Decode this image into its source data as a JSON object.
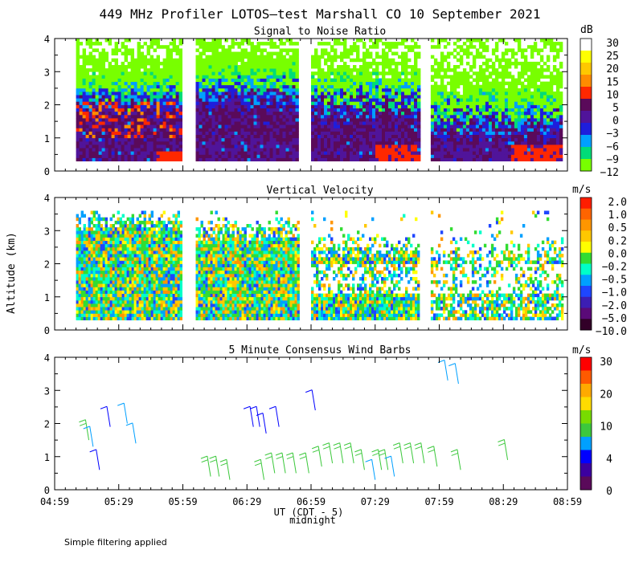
{
  "title": "449 MHz Profiler LOTOS—test Marshall CO 10 September 2021",
  "footer_note": "Simple filtering applied",
  "y_axis_label": "Altitude (km)",
  "x_axis_label": "UT  (CDT - 5)",
  "midnight_label": "midnight",
  "chart_data": [
    {
      "type": "heatmap",
      "title": "Signal to Noise Ratio",
      "ylim": [
        0,
        4
      ],
      "yticks": [
        "0",
        "1",
        "2",
        "3",
        "4"
      ],
      "xlim": [
        "04:59",
        "08:59"
      ],
      "colorbar_unit": "dB",
      "colorbar_labels": [
        "30",
        "25",
        "20",
        "15",
        "10",
        "5",
        "0",
        "−3",
        "−6",
        "−9",
        "−12"
      ],
      "colorbar_colors": [
        "#ffffff",
        "#ffff00",
        "#ffc800",
        "#ff8c00",
        "#ff2800",
        "#5a0a5a",
        "#50149a",
        "#1e1edc",
        "#00a0ff",
        "#00dc78",
        "#78ff00"
      ],
      "data_segments": [
        [
          "05:09",
          "05:58"
        ],
        [
          "06:05",
          "06:53"
        ],
        [
          "06:59",
          "07:49"
        ],
        [
          "07:55",
          "08:56"
        ]
      ],
      "altitude_range_km": [
        0.3,
        4.0
      ]
    },
    {
      "type": "heatmap",
      "title": "Vertical Velocity",
      "ylim": [
        0,
        4
      ],
      "yticks": [
        "0",
        "1",
        "2",
        "3",
        "4"
      ],
      "xlim": [
        "04:59",
        "08:59"
      ],
      "colorbar_unit": "m/s",
      "colorbar_labels": [
        "2.0",
        "1.0",
        "0.5",
        "0.2",
        "0.0",
        "−0.2",
        "−0.5",
        "−1.0",
        "−2.0",
        "−5.0",
        "−10.0"
      ],
      "colorbar_colors": [
        "#ff1e00",
        "#ff6400",
        "#ff9600",
        "#ffc800",
        "#ffff00",
        "#32dc32",
        "#00ffc8",
        "#00a0ff",
        "#1e46ff",
        "#3c1eb4",
        "#5a0a78",
        "#320028"
      ],
      "data_segments": [
        [
          "05:09",
          "05:58"
        ],
        [
          "06:05",
          "06:53"
        ],
        [
          "06:59",
          "07:49"
        ],
        [
          "07:55",
          "08:56"
        ]
      ],
      "altitude_range_km": [
        0.3,
        3.6
      ]
    },
    {
      "type": "scatter",
      "title": "5 Minute Consensus Wind Barbs",
      "ylim": [
        0,
        4
      ],
      "yticks": [
        "0",
        "1",
        "2",
        "3",
        "4"
      ],
      "xticks": [
        "04:59",
        "05:29",
        "05:59",
        "06:29",
        "06:59",
        "07:29",
        "07:59",
        "08:29",
        "08:59"
      ],
      "colorbar_unit": "m/s",
      "colorbar_labels": [
        "30",
        "20",
        "10",
        "4",
        "0"
      ],
      "colorbar_colors": [
        "#ff0000",
        "#ff5a00",
        "#ffaa00",
        "#ffdc00",
        "#78dc00",
        "#3cc83c",
        "#00a0ff",
        "#0000ff",
        "#3c00a0",
        "#5a0a5a"
      ],
      "barbs": [
        {
          "time": "05:15",
          "alt_km": 1.5,
          "speed_ms": 7
        },
        {
          "time": "05:17",
          "alt_km": 1.3,
          "speed_ms": 5
        },
        {
          "time": "05:20",
          "alt_km": 0.6,
          "speed_ms": 3
        },
        {
          "time": "05:25",
          "alt_km": 1.9,
          "speed_ms": 3
        },
        {
          "time": "05:33",
          "alt_km": 2.0,
          "speed_ms": 4
        },
        {
          "time": "05:37",
          "alt_km": 1.4,
          "speed_ms": 4
        },
        {
          "time": "06:12",
          "alt_km": 0.4,
          "speed_ms": 8
        },
        {
          "time": "06:16",
          "alt_km": 0.4,
          "speed_ms": 8
        },
        {
          "time": "06:21",
          "alt_km": 0.3,
          "speed_ms": 8
        },
        {
          "time": "06:32",
          "alt_km": 1.9,
          "speed_ms": 3
        },
        {
          "time": "06:35",
          "alt_km": 1.9,
          "speed_ms": 3
        },
        {
          "time": "06:38",
          "alt_km": 1.7,
          "speed_ms": 3
        },
        {
          "time": "06:37",
          "alt_km": 0.3,
          "speed_ms": 8
        },
        {
          "time": "06:42",
          "alt_km": 0.5,
          "speed_ms": 8
        },
        {
          "time": "06:44",
          "alt_km": 1.9,
          "speed_ms": 3
        },
        {
          "time": "06:47",
          "alt_km": 0.5,
          "speed_ms": 8
        },
        {
          "time": "06:52",
          "alt_km": 0.5,
          "speed_ms": 8
        },
        {
          "time": "06:58",
          "alt_km": 0.5,
          "speed_ms": 8
        },
        {
          "time": "07:01",
          "alt_km": 2.4,
          "speed_ms": 3
        },
        {
          "time": "07:04",
          "alt_km": 0.7,
          "speed_ms": 8
        },
        {
          "time": "07:09",
          "alt_km": 0.8,
          "speed_ms": 8
        },
        {
          "time": "07:14",
          "alt_km": 0.8,
          "speed_ms": 8
        },
        {
          "time": "07:19",
          "alt_km": 0.8,
          "speed_ms": 8
        },
        {
          "time": "07:24",
          "alt_km": 0.6,
          "speed_ms": 8
        },
        {
          "time": "07:29",
          "alt_km": 0.3,
          "speed_ms": 4
        },
        {
          "time": "07:32",
          "alt_km": 0.6,
          "speed_ms": 8
        },
        {
          "time": "07:35",
          "alt_km": 0.6,
          "speed_ms": 8
        },
        {
          "time": "07:38",
          "alt_km": 0.4,
          "speed_ms": 4
        },
        {
          "time": "07:42",
          "alt_km": 0.8,
          "speed_ms": 8
        },
        {
          "time": "07:47",
          "alt_km": 0.8,
          "speed_ms": 9
        },
        {
          "time": "07:52",
          "alt_km": 0.8,
          "speed_ms": 8
        },
        {
          "time": "07:58",
          "alt_km": 0.7,
          "speed_ms": 8
        },
        {
          "time": "08:03",
          "alt_km": 3.3,
          "speed_ms": 5
        },
        {
          "time": "08:08",
          "alt_km": 3.2,
          "speed_ms": 5
        },
        {
          "time": "08:09",
          "alt_km": 0.6,
          "speed_ms": 8
        },
        {
          "time": "08:31",
          "alt_km": 0.9,
          "speed_ms": 8
        }
      ]
    }
  ]
}
